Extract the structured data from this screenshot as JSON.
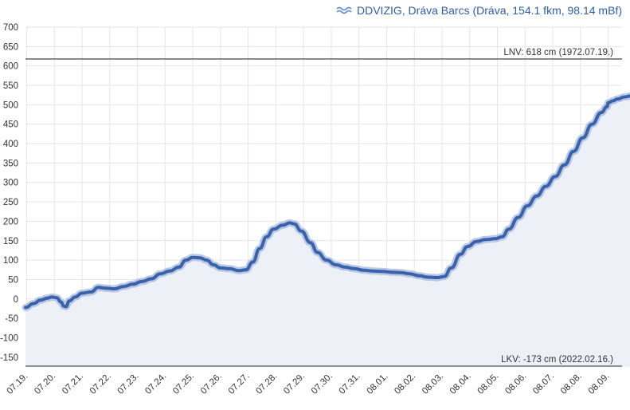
{
  "header": {
    "title": "DDVIZIG, Dráva Barcs (Dráva, 154.1 fkm, 98.14 mBf)",
    "logo_icon": "wave-logo-icon"
  },
  "colors": {
    "line": "#3a62a8",
    "line_halo": "#a9bde0",
    "area": "#eef0f7",
    "grid": "#e6e6e6",
    "refline": "#555555",
    "title": "#2f5ea8"
  },
  "chart_data": {
    "type": "area",
    "title": "DDVIZIG, Dráva Barcs (Dráva, 154.1 fkm, 98.14 mBf)",
    "xlabel": "",
    "ylabel": "",
    "ylim": [
      -180,
      700
    ],
    "xlim": [
      "07.18. 23:00",
      "08.09. 12:00"
    ],
    "grid": true,
    "legend": "none",
    "y_ticks": [
      "700",
      "650",
      "600",
      "550",
      "500",
      "450",
      "400",
      "350",
      "300",
      "250",
      "200",
      "150",
      "100",
      "50",
      "0",
      "-50",
      "-100",
      "-150"
    ],
    "x_ticks": [
      "07.19.",
      "07.20.",
      "07.21.",
      "07.22.",
      "07.23.",
      "07.24.",
      "07.25.",
      "07.26.",
      "07.27.",
      "07.28.",
      "07.29.",
      "07.30.",
      "07.31.",
      "08.01.",
      "08.02.",
      "08.03.",
      "08.04.",
      "08.05.",
      "08.06.",
      "08.07.",
      "08.08.",
      "08.09."
    ],
    "reference_lines": [
      {
        "label": "LNV: 618 cm (1972.07.19.)",
        "value": 618
      },
      {
        "label": "LKV: -173 cm (2022.02.16.)",
        "value": -173
      }
    ],
    "series": [
      {
        "values": [
          [
            "07.18. 23:00",
            -22
          ],
          [
            "07.19. 06:00",
            -12
          ],
          [
            "07.19. 12:00",
            -3
          ],
          [
            "07.19. 18:00",
            2
          ],
          [
            "07.19. 22:00",
            5
          ],
          [
            "07.20. 02:00",
            3
          ],
          [
            "07.20. 06:00",
            -8
          ],
          [
            "07.20. 08:00",
            -18
          ],
          [
            "07.20. 10:00",
            -20
          ],
          [
            "07.20. 13:00",
            -5
          ],
          [
            "07.20. 18:00",
            5
          ],
          [
            "07.21. 00:00",
            15
          ],
          [
            "07.21. 08:00",
            18
          ],
          [
            "07.21. 14:00",
            30
          ],
          [
            "07.21. 20:00",
            28
          ],
          [
            "07.22. 04:00",
            26
          ],
          [
            "07.22. 12:00",
            32
          ],
          [
            "07.22. 20:00",
            38
          ],
          [
            "07.23. 04:00",
            45
          ],
          [
            "07.23. 12:00",
            52
          ],
          [
            "07.23. 20:00",
            65
          ],
          [
            "07.24. 04:00",
            72
          ],
          [
            "07.24. 12:00",
            82
          ],
          [
            "07.24. 18:00",
            100
          ],
          [
            "07.25. 00:00",
            107
          ],
          [
            "07.25. 06:00",
            106
          ],
          [
            "07.25. 12:00",
            100
          ],
          [
            "07.25. 18:00",
            88
          ],
          [
            "07.26. 00:00",
            80
          ],
          [
            "07.26. 08:00",
            78
          ],
          [
            "07.26. 16:00",
            73
          ],
          [
            "07.26. 22:00",
            75
          ],
          [
            "07.27. 04:00",
            95
          ],
          [
            "07.27. 10:00",
            130
          ],
          [
            "07.27. 16:00",
            160
          ],
          [
            "07.27. 22:00",
            180
          ],
          [
            "07.28. 06:00",
            190
          ],
          [
            "07.28. 12:00",
            196
          ],
          [
            "07.28. 16:00",
            193
          ],
          [
            "07.28. 22:00",
            175
          ],
          [
            "07.29. 06:00",
            145
          ],
          [
            "07.29. 12:00",
            120
          ],
          [
            "07.29. 20:00",
            100
          ],
          [
            "07.30. 04:00",
            88
          ],
          [
            "07.30. 12:00",
            82
          ],
          [
            "07.30. 20:00",
            78
          ],
          [
            "07.31. 04:00",
            74
          ],
          [
            "07.31. 12:00",
            72
          ],
          [
            "07.31. 20:00",
            71
          ],
          [
            "08.01. 04:00",
            69
          ],
          [
            "08.01. 12:00",
            68
          ],
          [
            "08.01. 20:00",
            65
          ],
          [
            "08.02. 04:00",
            60
          ],
          [
            "08.02. 12:00",
            56
          ],
          [
            "08.02. 20:00",
            55
          ],
          [
            "08.03. 02:00",
            58
          ],
          [
            "08.03. 08:00",
            80
          ],
          [
            "08.03. 16:00",
            115
          ],
          [
            "08.03. 22:00",
            135
          ],
          [
            "08.04. 06:00",
            148
          ],
          [
            "08.04. 14:00",
            153
          ],
          [
            "08.04. 22:00",
            155
          ],
          [
            "08.05. 04:00",
            160
          ],
          [
            "08.05. 10:00",
            180
          ],
          [
            "08.05. 18:00",
            210
          ],
          [
            "08.06. 02:00",
            240
          ],
          [
            "08.06. 10:00",
            265
          ],
          [
            "08.06. 18:00",
            290
          ],
          [
            "08.07. 02:00",
            315
          ],
          [
            "08.07. 10:00",
            345
          ],
          [
            "08.07. 18:00",
            380
          ],
          [
            "08.08. 02:00",
            415
          ],
          [
            "08.08. 10:00",
            450
          ],
          [
            "08.08. 18:00",
            480
          ],
          [
            "08.08. 23:00",
            495
          ],
          [
            "08.09. 00:00",
            505
          ],
          [
            "08.09. 04:00",
            510
          ],
          [
            "08.09. 08:00",
            515
          ],
          [
            "08.09. 14:00",
            520
          ],
          [
            "08.09. 20:00",
            523
          ],
          [
            "08.10. 00:00",
            526
          ]
        ]
      }
    ]
  }
}
